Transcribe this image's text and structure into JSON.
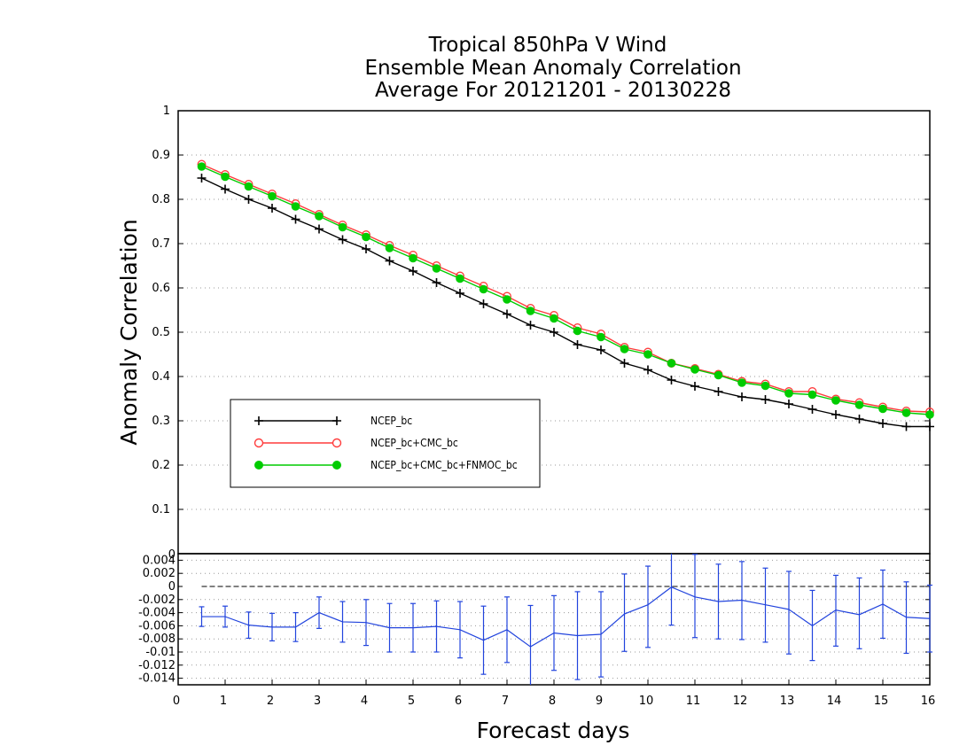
{
  "chart_data": [
    {
      "type": "line",
      "title": [
        "Tropical 850hPa V Wind",
        "Ensemble Mean Anomaly Correlation",
        "Average For 20121201 - 20130228"
      ],
      "xlabel": "",
      "ylabel": "Anomaly Correlation",
      "xlim": [
        0,
        16
      ],
      "ylim": [
        0,
        1
      ],
      "y_ticks": [
        "0",
        "0.1",
        "0.2",
        "0.3",
        "0.4",
        "0.5",
        "0.6",
        "0.7",
        "0.8",
        "0.9",
        "1"
      ],
      "grid": "horizontal dotted",
      "legend_position": "lower-left",
      "x": [
        0.5,
        1,
        1.5,
        2,
        2.5,
        3,
        3.5,
        4,
        4.5,
        5,
        5.5,
        6,
        6.5,
        7,
        7.5,
        8,
        8.5,
        9,
        9.5,
        10,
        10.5,
        11,
        11.5,
        12,
        12.5,
        13,
        13.5,
        14,
        14.5,
        15,
        15.5,
        16
      ],
      "series": [
        {
          "name": "NCEP_bc",
          "color": "#000000",
          "marker": "plus",
          "values": [
            0.848,
            0.823,
            0.8,
            0.78,
            0.755,
            0.733,
            0.709,
            0.688,
            0.661,
            0.638,
            0.612,
            0.588,
            0.564,
            0.541,
            0.516,
            0.5,
            0.472,
            0.46,
            0.43,
            0.415,
            0.392,
            0.378,
            0.366,
            0.354,
            0.348,
            0.338,
            0.326,
            0.314,
            0.304,
            0.294,
            0.287,
            0.287
          ]
        },
        {
          "name": "NCEP_bc+CMC_bc",
          "color": "#ff3b3b",
          "marker": "open-circle",
          "values": [
            0.879,
            0.856,
            0.834,
            0.812,
            0.79,
            0.766,
            0.742,
            0.72,
            0.696,
            0.674,
            0.65,
            0.627,
            0.604,
            0.581,
            0.554,
            0.538,
            0.51,
            0.496,
            0.466,
            0.455,
            0.43,
            0.418,
            0.405,
            0.389,
            0.383,
            0.366,
            0.366,
            0.349,
            0.341,
            0.331,
            0.322,
            0.32
          ]
        },
        {
          "name": "NCEP_bc+CMC_bc+FNMOC_bc",
          "color": "#00cc00",
          "marker": "filled-circle",
          "values": [
            0.874,
            0.851,
            0.829,
            0.807,
            0.784,
            0.762,
            0.737,
            0.715,
            0.69,
            0.667,
            0.644,
            0.621,
            0.597,
            0.574,
            0.548,
            0.531,
            0.503,
            0.489,
            0.462,
            0.45,
            0.43,
            0.416,
            0.403,
            0.386,
            0.379,
            0.362,
            0.359,
            0.346,
            0.336,
            0.327,
            0.318,
            0.314
          ]
        }
      ]
    },
    {
      "type": "line",
      "subtype": "errorbar",
      "xlabel": "Forecast days",
      "xlim": [
        0,
        16
      ],
      "ylim": [
        -0.015,
        0.005
      ],
      "x_ticks": [
        "0",
        "1",
        "2",
        "3",
        "4",
        "5",
        "6",
        "7",
        "8",
        "9",
        "10",
        "11",
        "12",
        "13",
        "14",
        "15",
        "16"
      ],
      "y_ticks": [
        "-0.014",
        "-0.012",
        "-0.01",
        "-0.008",
        "-0.006",
        "-0.004",
        "-0.002",
        "0",
        "0.002",
        "0.004"
      ],
      "top_tick_label": "0",
      "grid": "horizontal dotted",
      "zero_line": "dashed",
      "x": [
        0.5,
        1,
        1.5,
        2,
        2.5,
        3,
        3.5,
        4,
        4.5,
        5,
        5.5,
        6,
        6.5,
        7,
        7.5,
        8,
        8.5,
        9,
        9.5,
        10,
        10.5,
        11,
        11.5,
        12,
        12.5,
        13,
        13.5,
        14,
        14.5,
        15,
        15.5,
        16
      ],
      "series": [
        {
          "name": "difference",
          "color": "#2244dd",
          "values": [
            -0.0046,
            -0.0046,
            -0.0059,
            -0.0062,
            -0.0062,
            -0.004,
            -0.0054,
            -0.0055,
            -0.0063,
            -0.0063,
            -0.0061,
            -0.0066,
            -0.0082,
            -0.0066,
            -0.0092,
            -0.0071,
            -0.0075,
            -0.0073,
            -0.0042,
            -0.0028,
            -0.0001,
            -0.0016,
            -0.0023,
            -0.0021,
            -0.0028,
            -0.0035,
            -0.006,
            -0.0036,
            -0.0043,
            -0.0027,
            -0.0047,
            -0.0049
          ],
          "error_low": [
            -0.0061,
            -0.0062,
            -0.0079,
            -0.0083,
            -0.0084,
            -0.0064,
            -0.0085,
            -0.009,
            -0.01,
            -0.01,
            -0.01,
            -0.0109,
            -0.0134,
            -0.0116,
            -0.0155,
            -0.0128,
            -0.0142,
            -0.0138,
            -0.0099,
            -0.0093,
            -0.0059,
            -0.0078,
            -0.008,
            -0.0081,
            -0.0085,
            -0.0103,
            -0.0113,
            -0.0091,
            -0.0095,
            -0.0079,
            -0.0102,
            -0.01
          ],
          "error_high": [
            -0.0031,
            -0.003,
            -0.0039,
            -0.0041,
            -0.004,
            -0.0016,
            -0.0023,
            -0.002,
            -0.0026,
            -0.0026,
            -0.0022,
            -0.0023,
            -0.003,
            -0.0016,
            -0.0029,
            -0.0014,
            -0.0008,
            -0.0008,
            0.0019,
            0.0031,
            0.005,
            0.0049,
            0.0034,
            0.0038,
            0.0028,
            0.0023,
            -0.0006,
            0.0017,
            0.0013,
            0.0025,
            0.0007,
            0.0002
          ]
        }
      ]
    }
  ]
}
